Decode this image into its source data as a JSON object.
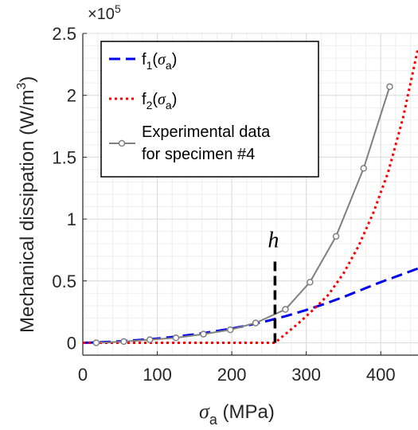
{
  "chart_data": {
    "type": "line",
    "x_axis": {
      "label_symbol": "σ",
      "label_sub": "a",
      "label_unit": " (MPa)",
      "lim": [
        0,
        450
      ],
      "ticks": [
        0,
        100,
        200,
        300,
        400
      ],
      "tick_labels": [
        "0",
        "100",
        "200",
        "300",
        "400"
      ]
    },
    "y_axis": {
      "label_main": "Mechanical dissipation (W/m",
      "label_sup": "3",
      "label_end": ")",
      "lim": [
        -0.1,
        2.5
      ],
      "ticks": [
        0,
        0.5,
        1,
        1.5,
        2,
        2.5
      ],
      "tick_labels": [
        "0",
        "0.5",
        "1",
        "1.5",
        "2",
        "2.5"
      ],
      "multiplier_prefix": "×10",
      "multiplier_exp": "5"
    },
    "grid": true,
    "minor_grid": true,
    "legend_placement": "top-left",
    "series": [
      {
        "name_main": "f",
        "name_sub": "1",
        "name_open": "(",
        "name_sym": "σ",
        "name_sym_sub": "a",
        "name_close": ")",
        "color": "#0000ee",
        "dash": "14,7",
        "marker": false,
        "x": [
          0,
          25,
          50,
          75,
          100,
          125,
          150,
          175,
          200,
          225,
          250,
          275,
          300,
          325,
          350,
          375,
          400,
          425,
          450
        ],
        "y": [
          0,
          0.004,
          0.012,
          0.022,
          0.034,
          0.05,
          0.068,
          0.09,
          0.115,
          0.145,
          0.18,
          0.22,
          0.265,
          0.315,
          0.37,
          0.43,
          0.49,
          0.545,
          0.6
        ]
      },
      {
        "name_main": "f",
        "name_sub": "2",
        "name_open": "(",
        "name_sym": "σ",
        "name_sym_sub": "a",
        "name_close": ")",
        "color": "#ff0000",
        "dash": "3,4",
        "marker": false,
        "x": [
          0,
          50,
          100,
          150,
          200,
          258,
          270,
          290,
          310,
          330,
          350,
          370,
          390,
          410,
          430,
          450
        ],
        "y": [
          0,
          0,
          0,
          0,
          0,
          0,
          0.06,
          0.16,
          0.27,
          0.39,
          0.56,
          0.78,
          1.05,
          1.38,
          1.82,
          2.38
        ]
      },
      {
        "name_line1": "Experimental data",
        "name_line2": "for specimen #4",
        "color": "#808080",
        "dash": "",
        "marker": true,
        "x": [
          18,
          55,
          90,
          125,
          162,
          198,
          232,
          272,
          305,
          340,
          377,
          412
        ],
        "y": [
          0,
          0.01,
          0.025,
          0.04,
          0.07,
          0.105,
          0.16,
          0.27,
          0.49,
          0.86,
          1.41,
          2.07
        ]
      }
    ],
    "annotations": [
      {
        "text": "h",
        "x": 258,
        "y_from": 0,
        "y_to": 0.67
      }
    ]
  }
}
